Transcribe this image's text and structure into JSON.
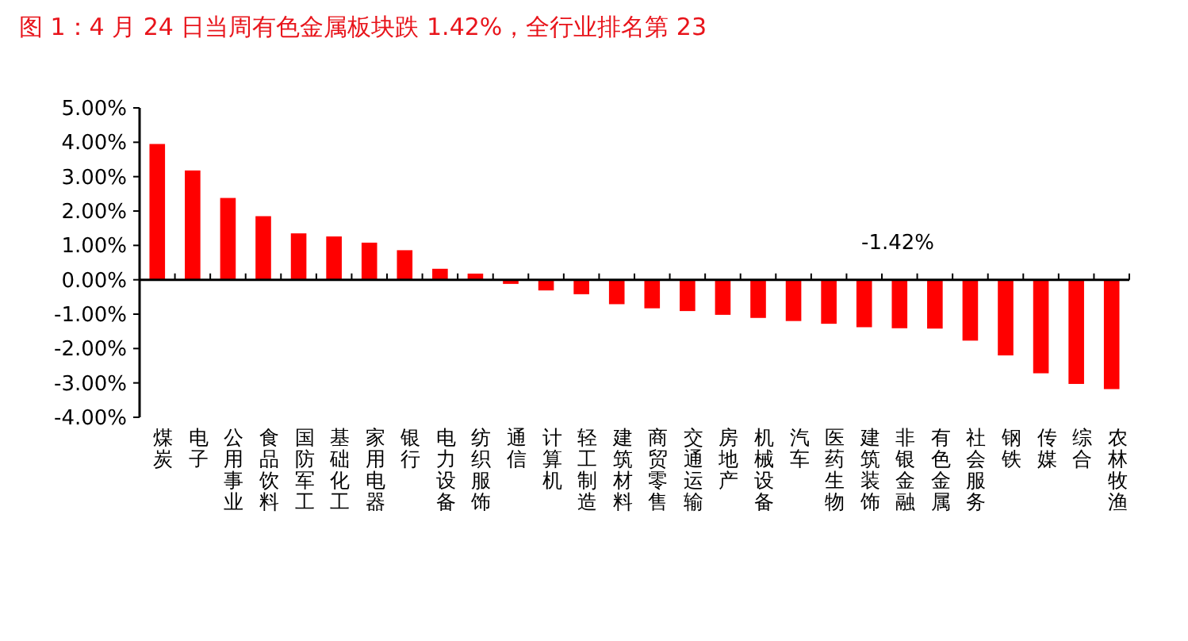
{
  "chart_data": {
    "type": "bar",
    "title": "图 1：4 月 24 日当周有色金属板块跌 1.42%，全行业排名第 23",
    "categories": [
      "煤炭",
      "电子",
      "公用事业",
      "食品饮料",
      "国防军工",
      "基础化工",
      "家用电器",
      "银行",
      "电力设备",
      "纺织服饰",
      "通信",
      "计算机",
      "轻工制造",
      "建筑材料",
      "商贸零售",
      "交通运输",
      "房地产",
      "机械设备",
      "汽车",
      "医药生物",
      "建筑装饰",
      "非银金融",
      "有色金属",
      "社会服务",
      "钢铁",
      "传媒",
      "综合",
      "农林牧渔"
    ],
    "values": [
      3.95,
      3.18,
      2.38,
      1.85,
      1.35,
      1.26,
      1.08,
      0.86,
      0.32,
      0.18,
      -0.12,
      -0.31,
      -0.42,
      -0.71,
      -0.83,
      -0.91,
      -1.02,
      -1.11,
      -1.2,
      -1.28,
      -1.38,
      -1.41,
      -1.42,
      -1.77,
      -2.2,
      -2.72,
      -3.03,
      -3.18
    ],
    "color": "#ff0000",
    "ylim": [
      -4,
      5
    ],
    "yticks": [
      {
        "value": -4,
        "label": "-4.00%"
      },
      {
        "value": -3,
        "label": "-3.00%"
      },
      {
        "value": -2,
        "label": "-2.00%"
      },
      {
        "value": -1,
        "label": "-1.00%"
      },
      {
        "value": 0,
        "label": "0.00%"
      },
      {
        "value": 1,
        "label": "1.00%"
      },
      {
        "value": 2,
        "label": "2.00%"
      },
      {
        "value": 3,
        "label": "3.00%"
      },
      {
        "value": 4,
        "label": "4.00%"
      },
      {
        "value": 5,
        "label": "5.00%"
      }
    ],
    "annotations": [
      "-1.42%"
    ]
  }
}
